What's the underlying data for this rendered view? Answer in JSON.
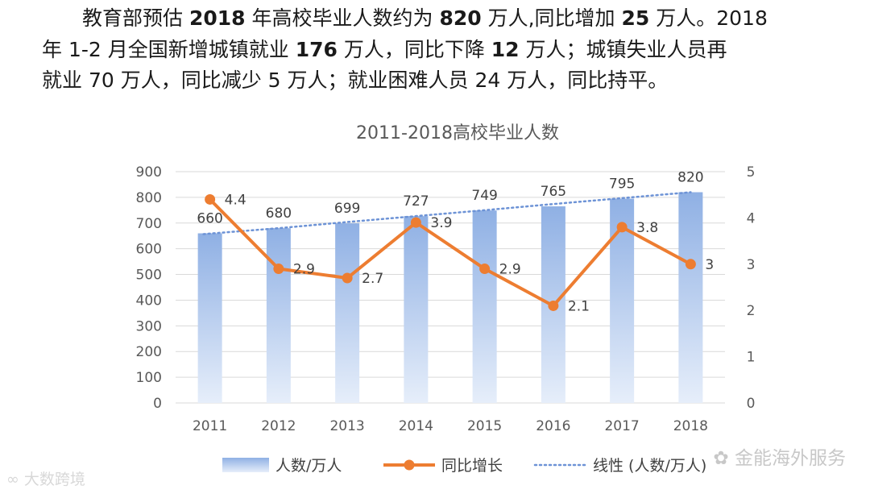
{
  "paragraph": {
    "line1": [
      {
        "t": "教育部预估 ",
        "b": false
      },
      {
        "t": "2018",
        "b": true
      },
      {
        "t": " 年高校毕业人数约为 ",
        "b": false
      },
      {
        "t": "820",
        "b": true
      },
      {
        "t": " 万人,同比增加 ",
        "b": false
      },
      {
        "t": "25",
        "b": true
      },
      {
        "t": " 万人。2018",
        "b": false
      }
    ],
    "line2": [
      {
        "t": "年 1-2 月全国新增城镇就业 ",
        "b": false
      },
      {
        "t": "176",
        "b": true
      },
      {
        "t": " 万人，同比下降 ",
        "b": false
      },
      {
        "t": "12",
        "b": true
      },
      {
        "t": " 万人；城镇失业人员再",
        "b": false
      }
    ],
    "line3": [
      {
        "t": "就业 70 万人，同比减少 5 万人；就业困难人员 24 万人，同比持平。",
        "b": false
      }
    ]
  },
  "chart_data": {
    "type": "bar",
    "title": "2011-2018高校毕业人数",
    "categories": [
      "2011",
      "2012",
      "2013",
      "2014",
      "2015",
      "2016",
      "2017",
      "2018"
    ],
    "series": [
      {
        "name": "人数/万人",
        "type": "bar",
        "axis": "left",
        "values": [
          660,
          680,
          699,
          727,
          749,
          765,
          795,
          820
        ]
      },
      {
        "name": "同比增长",
        "type": "line",
        "axis": "right",
        "values": [
          4.4,
          2.9,
          2.7,
          3.9,
          2.9,
          2.1,
          3.8,
          3
        ]
      },
      {
        "name": "线性 (人数/万人)",
        "type": "trendline",
        "axis": "left",
        "values": [
          657,
          680,
          704,
          727,
          750,
          774,
          797,
          820
        ]
      }
    ],
    "y_left": {
      "min": 0,
      "max": 900,
      "ticks": [
        "0",
        "100",
        "200",
        "300",
        "400",
        "500",
        "600",
        "700",
        "800",
        "900"
      ]
    },
    "y_right": {
      "min": 0,
      "max": 5,
      "ticks": [
        "0",
        "1",
        "2",
        "3",
        "4",
        "5"
      ]
    },
    "grid": true,
    "legend_position": "bottom",
    "colors": {
      "bar": "#8fb0e4",
      "bar_light": "#e6eefa",
      "line": "#ed7d31",
      "trend": "#6d93d6",
      "grid": "#d9d9d9",
      "label": "#404040",
      "axis_text": "#595959"
    }
  },
  "watermarks": {
    "left": "大数跨境",
    "right": "金能海外服务"
  }
}
